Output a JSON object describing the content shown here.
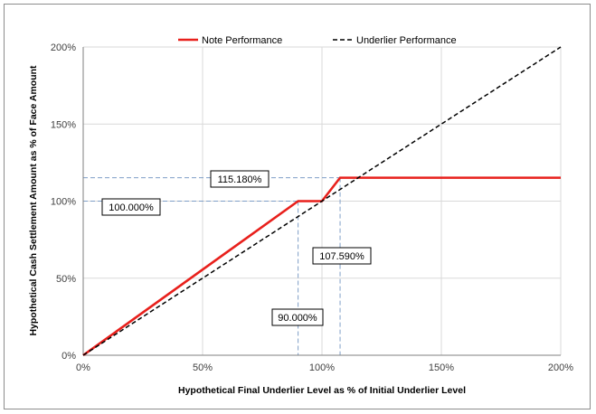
{
  "chart_data": {
    "type": "line",
    "xlabel": "Hypothetical Final Underlier Level as % of Initial Underlier Level",
    "ylabel": "Hypothetical Cash Settlement Amount as % of Face Amount",
    "xlim": [
      0,
      200
    ],
    "ylim": [
      0,
      200
    ],
    "x_ticks": [
      "0%",
      "50%",
      "100%",
      "150%",
      "200%"
    ],
    "y_ticks": [
      "0%",
      "50%",
      "100%",
      "150%",
      "200%"
    ],
    "grid": true,
    "legend_position": "top",
    "series": [
      {
        "name": "Note Performance",
        "color": "#e8201c",
        "style": "solid",
        "x": [
          0,
          90,
          100,
          107.59,
          200
        ],
        "y": [
          0,
          100,
          100,
          115.18,
          115.18
        ]
      },
      {
        "name": "Underlier Performance",
        "color": "#000000",
        "style": "dashed",
        "x": [
          0,
          200
        ],
        "y": [
          0,
          200
        ]
      }
    ],
    "annotations": [
      {
        "text": "115.180%",
        "x": 115.18,
        "kind": "horizontal-guide",
        "y": 115.18,
        "to_x": 107.59
      },
      {
        "text": "100.000%",
        "x": 100,
        "kind": "horizontal-guide",
        "y": 100,
        "to_x": 90
      },
      {
        "text": "107.590%",
        "kind": "vertical-guide",
        "x": 107.59,
        "to_y": 115.18
      },
      {
        "text": "90.000%",
        "kind": "vertical-guide",
        "x": 90,
        "to_y": 100
      }
    ]
  }
}
